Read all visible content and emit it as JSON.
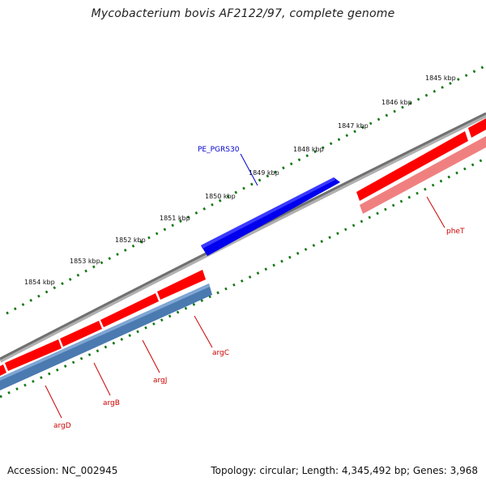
{
  "header": {
    "title": "Mycobacterium bovis AF2122/97, complete genome"
  },
  "footer": {
    "accession": "Accession: NC_002945",
    "summary": "Topology: circular; Length: 4,345,492 bp; Genes: 3,968"
  },
  "ticks": {
    "labels": [
      "1845 kbp",
      "1846 kbp",
      "1847 kbp",
      "1848 kbp",
      "1849 kbp",
      "1850 kbp",
      "1851 kbp",
      "1852 kbp",
      "1853 kbp",
      "1854 kbp"
    ]
  },
  "genes": [
    {
      "name": "PE_PGRS30",
      "color": "#0000cc"
    },
    {
      "name": "pheT",
      "color": "#cc0000"
    },
    {
      "name": "argC",
      "color": "#cc0000"
    },
    {
      "name": "argJ",
      "color": "#cc0000"
    },
    {
      "name": "argB",
      "color": "#cc0000"
    },
    {
      "name": "argD",
      "color": "#cc0000"
    }
  ],
  "colors": {
    "backbone": "#808080",
    "forward_cds": "#ff0000",
    "forward_cds_pale": "#f08080",
    "reverse_blue": "#0000ee",
    "reverse_steel": "#4a7ab0",
    "tick_marks": "#117711"
  }
}
